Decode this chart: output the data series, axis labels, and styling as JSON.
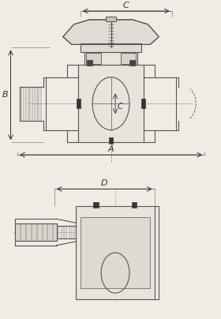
{
  "bg_color": "#f0ece4",
  "line_color": "#555555",
  "dark_color": "#333333",
  "title": "",
  "fig_width": 2.8,
  "fig_height": 4.04,
  "dpi": 100,
  "label_A": "A",
  "label_B": "B",
  "label_C": "C",
  "label_D": "D"
}
